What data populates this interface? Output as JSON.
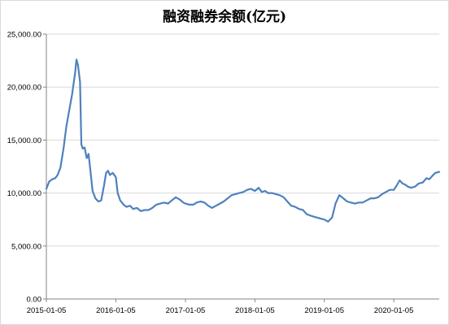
{
  "chart_data": {
    "type": "line",
    "title": "融资融券余额(亿元)",
    "xlabel": "",
    "ylabel": "",
    "ylim": [
      0,
      25000
    ],
    "y_ticks": [
      0,
      5000,
      10000,
      15000,
      20000,
      25000
    ],
    "y_tick_labels": [
      "0.00",
      "5,000.00",
      "10,000.00",
      "15,000.00",
      "20,000.00",
      "25,000.00"
    ],
    "x_range": [
      "2015-01-05",
      "2020-08-31"
    ],
    "x_ticks": [
      "2015-01-05",
      "2016-01-05",
      "2017-01-05",
      "2018-01-05",
      "2019-01-05",
      "2020-01-05"
    ],
    "grid": "horizontal",
    "legend": "none",
    "series_color": "#4f81bd",
    "series": [
      {
        "x": [
          "2015-01-05",
          "2015-01-20",
          "2015-02-05",
          "2015-02-20",
          "2015-03-05",
          "2015-03-20",
          "2015-04-05",
          "2015-04-20",
          "2015-05-05",
          "2015-05-20",
          "2015-06-05",
          "2015-06-12",
          "2015-06-20",
          "2015-07-01",
          "2015-07-08",
          "2015-07-15",
          "2015-07-25",
          "2015-08-05",
          "2015-08-15",
          "2015-08-25",
          "2015-09-05",
          "2015-09-20",
          "2015-10-05",
          "2015-10-20",
          "2015-11-05",
          "2015-11-15",
          "2015-11-25",
          "2015-12-05",
          "2015-12-20",
          "2016-01-05",
          "2016-01-15",
          "2016-01-28",
          "2016-02-15",
          "2016-03-01",
          "2016-03-20",
          "2016-04-05",
          "2016-04-25",
          "2016-05-15",
          "2016-06-05",
          "2016-06-25",
          "2016-07-15",
          "2016-08-05",
          "2016-08-25",
          "2016-09-15",
          "2016-10-05",
          "2016-10-25",
          "2016-11-15",
          "2016-12-05",
          "2016-12-25",
          "2017-01-05",
          "2017-01-25",
          "2017-02-15",
          "2017-03-05",
          "2017-03-25",
          "2017-04-15",
          "2017-05-05",
          "2017-05-25",
          "2017-06-15",
          "2017-07-05",
          "2017-07-25",
          "2017-08-15",
          "2017-09-05",
          "2017-09-25",
          "2017-10-15",
          "2017-11-05",
          "2017-11-25",
          "2017-12-15",
          "2018-01-05",
          "2018-01-25",
          "2018-02-10",
          "2018-02-28",
          "2018-03-15",
          "2018-04-05",
          "2018-04-25",
          "2018-05-15",
          "2018-06-05",
          "2018-06-25",
          "2018-07-15",
          "2018-08-05",
          "2018-08-25",
          "2018-09-15",
          "2018-10-05",
          "2018-10-20",
          "2018-11-05",
          "2018-11-25",
          "2018-12-15",
          "2019-01-05",
          "2019-01-25",
          "2019-02-15",
          "2019-03-05",
          "2019-03-25",
          "2019-04-15",
          "2019-05-05",
          "2019-05-25",
          "2019-06-15",
          "2019-07-05",
          "2019-07-25",
          "2019-08-15",
          "2019-09-05",
          "2019-09-25",
          "2019-10-15",
          "2019-11-05",
          "2019-11-25",
          "2019-12-15",
          "2020-01-05",
          "2020-01-20",
          "2020-02-05",
          "2020-02-20",
          "2020-03-05",
          "2020-03-20",
          "2020-04-05",
          "2020-04-25",
          "2020-05-15",
          "2020-06-05",
          "2020-06-25",
          "2020-07-10",
          "2020-07-25",
          "2020-08-10",
          "2020-08-31"
        ],
        "values": [
          10400,
          11100,
          11300,
          11400,
          11700,
          12400,
          14200,
          16300,
          17800,
          19300,
          21300,
          22600,
          22100,
          20500,
          14600,
          14200,
          14300,
          13300,
          13700,
          12000,
          10200,
          9500,
          9200,
          9300,
          10800,
          11900,
          12100,
          11700,
          11900,
          11500,
          10000,
          9300,
          8900,
          8700,
          8800,
          8500,
          8600,
          8300,
          8400,
          8400,
          8600,
          8900,
          9000,
          9100,
          9000,
          9300,
          9600,
          9400,
          9100,
          9000,
          8900,
          8900,
          9100,
          9200,
          9100,
          8800,
          8600,
          8800,
          9000,
          9200,
          9500,
          9800,
          9900,
          10000,
          10100,
          10300,
          10400,
          10200,
          10500,
          10100,
          10200,
          10000,
          10000,
          9900,
          9800,
          9600,
          9200,
          8800,
          8700,
          8500,
          8400,
          8000,
          7900,
          7800,
          7700,
          7600,
          7500,
          7300,
          7700,
          9000,
          9800,
          9500,
          9200,
          9100,
          9000,
          9100,
          9100,
          9300,
          9500,
          9500,
          9600,
          9900,
          10100,
          10300,
          10300,
          10700,
          11200,
          10900,
          10800,
          10600,
          10500,
          10600,
          10900,
          11000,
          11400,
          11300,
          11600,
          11900,
          12000
        ]
      }
    ]
  }
}
